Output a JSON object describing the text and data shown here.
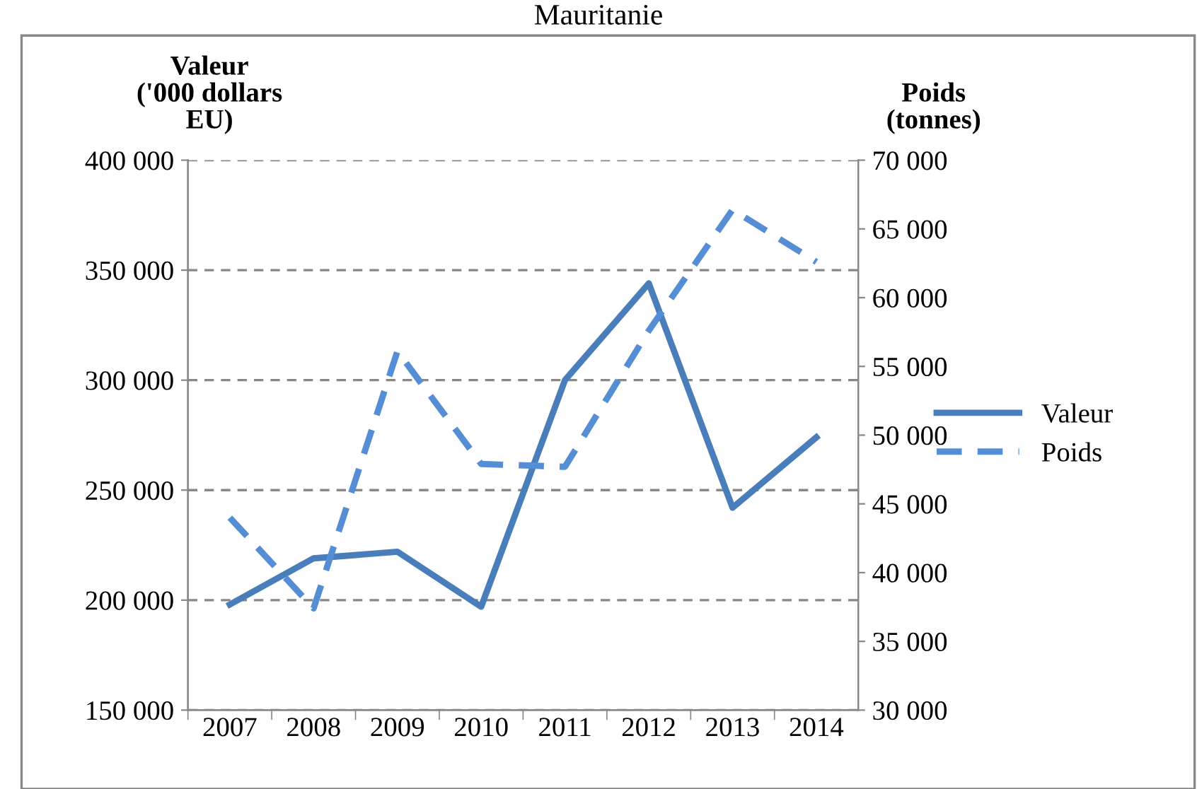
{
  "chart_data": {
    "type": "line",
    "title": "Mauritanie",
    "ylabel": "Valeur\n('000 dollars\nEU)",
    "y2label": "Poids\n(tonnes)",
    "categories": [
      "2007",
      "2008",
      "2009",
      "2010",
      "2011",
      "2012",
      "2013",
      "2014"
    ],
    "series": [
      {
        "name": "Valeur",
        "color": "#4a7ebb",
        "line_style": "solid",
        "values": [
          198000,
          219000,
          222000,
          197000,
          300000,
          344000,
          242000,
          274000
        ]
      },
      {
        "name": "Poids",
        "color": "#558ed5",
        "line_style": "dashed",
        "axis": "y2",
        "values": [
          44000,
          37400,
          56100,
          47900,
          47700,
          57600,
          66400,
          62600
        ]
      }
    ],
    "ylim": [
      150000,
      400000
    ],
    "yticks": [
      {
        "value": 150000,
        "label": "150 000"
      },
      {
        "value": 200000,
        "label": "200 000"
      },
      {
        "value": 250000,
        "label": "250 000"
      },
      {
        "value": 300000,
        "label": "300 000"
      },
      {
        "value": 350000,
        "label": "350 000"
      },
      {
        "value": 400000,
        "label": "400 000"
      }
    ],
    "y2lim": [
      30000,
      70000
    ],
    "y2ticks": [
      {
        "value": 30000,
        "label": "30 000"
      },
      {
        "value": 35000,
        "label": "35 000"
      },
      {
        "value": 40000,
        "label": "40 000"
      },
      {
        "value": 45000,
        "label": "45 000"
      },
      {
        "value": 50000,
        "label": "50 000"
      },
      {
        "value": 55000,
        "label": "55 000"
      },
      {
        "value": 60000,
        "label": "60 000"
      },
      {
        "value": 65000,
        "label": "65 000"
      },
      {
        "value": 70000,
        "label": "70 000"
      }
    ],
    "grid": "y",
    "legend": "right",
    "marker": "none"
  }
}
